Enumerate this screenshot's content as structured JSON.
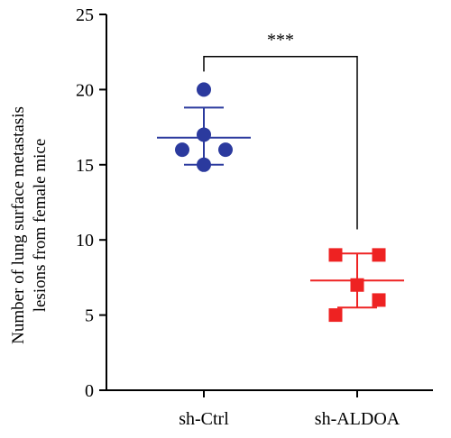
{
  "chart_data": {
    "type": "scatter",
    "ylabel_line1": "Number of lung surface metastasis",
    "ylabel_line2": "lesions from female mice",
    "xlabel": "",
    "title": "",
    "ylim": [
      0,
      25
    ],
    "yticks": [
      0,
      5,
      10,
      15,
      20,
      25
    ],
    "grid": false,
    "categories": [
      "sh-Ctrl",
      "sh-ALDOA"
    ],
    "series": [
      {
        "category": "sh-Ctrl",
        "color": "#2b3a9e",
        "marker": "circle",
        "points": [
          {
            "offset": 0,
            "y": 20
          },
          {
            "offset": 0,
            "y": 17
          },
          {
            "offset": -1,
            "y": 16
          },
          {
            "offset": 1,
            "y": 16
          },
          {
            "offset": 0,
            "y": 15
          }
        ],
        "mean": 16.8,
        "sd_low": 15.0,
        "sd_high": 18.8
      },
      {
        "category": "sh-ALDOA",
        "color": "#ee2222",
        "marker": "square",
        "points": [
          {
            "offset": -1,
            "y": 9
          },
          {
            "offset": 1,
            "y": 9
          },
          {
            "offset": 0,
            "y": 7
          },
          {
            "offset": 1,
            "y": 6
          },
          {
            "offset": -1,
            "y": 5
          }
        ],
        "mean": 7.3,
        "sd_low": 5.5,
        "sd_high": 9.1
      }
    ],
    "annotation": {
      "text": "***",
      "bracket_left_y": 21.2,
      "bracket_right_y": 10.7,
      "bracket_top_y": 22.2
    }
  }
}
